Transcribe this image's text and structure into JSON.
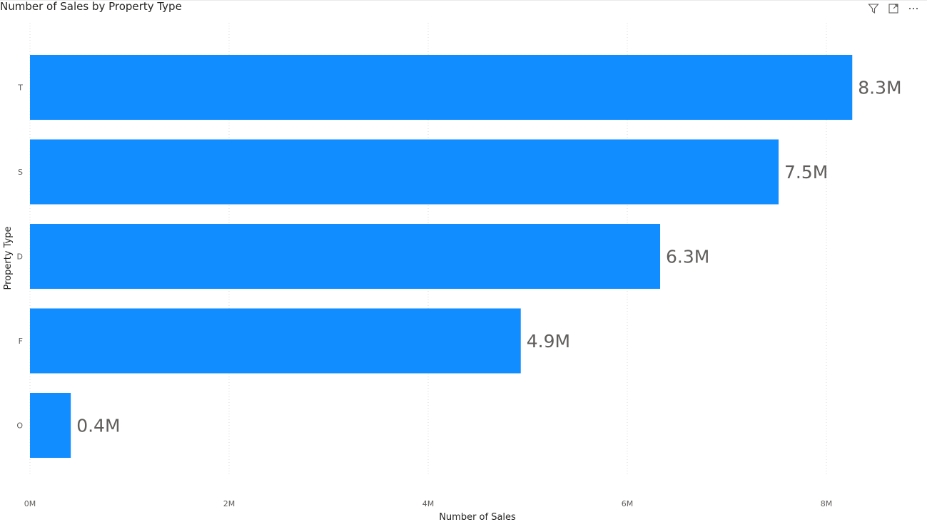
{
  "header": {
    "title": "Number of Sales by Property Type",
    "icons": [
      "filter-icon",
      "focus-mode-icon",
      "more-options-icon"
    ]
  },
  "colors": {
    "bar": "#118DFF",
    "grid": "#d9d9d9",
    "tick_text": "#605E5C",
    "data_label": "#605E5C",
    "axis_title": "#252423"
  },
  "chart_data": {
    "type": "bar",
    "orientation": "horizontal",
    "title": "Number of Sales by Property Type",
    "xlabel": "Number of Sales",
    "ylabel": "Property Type",
    "categories": [
      "T",
      "S",
      "D",
      "F",
      "O"
    ],
    "values": [
      8.26,
      7.52,
      6.33,
      4.93,
      0.41
    ],
    "data_labels": [
      "8.3M",
      "7.5M",
      "6.3M",
      "4.9M",
      "0.4M"
    ],
    "xlim": [
      0,
      8.8
    ],
    "xticks": [
      0,
      2,
      4,
      6,
      8
    ],
    "xtick_labels": [
      "0M",
      "2M",
      "4M",
      "6M",
      "8M"
    ],
    "grid": "vertical-dotted",
    "legend": "none"
  }
}
